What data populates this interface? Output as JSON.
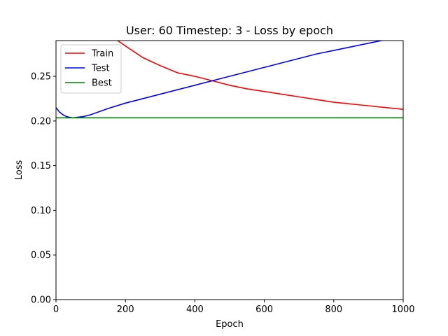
{
  "chart_data": {
    "type": "line",
    "title": "User: 60 Timestep: 3 - Loss by epoch",
    "xlabel": "Epoch",
    "ylabel": "Loss",
    "xlim": [
      0,
      1000
    ],
    "ylim": [
      0,
      0.29
    ],
    "xticks": [
      0,
      200,
      400,
      600,
      800,
      1000
    ],
    "xtick_labels": [
      "0",
      "200",
      "400",
      "600",
      "800",
      "1000"
    ],
    "yticks": [
      0,
      0.05,
      0.1,
      0.15,
      0.2,
      0.25
    ],
    "ytick_labels": [
      "0.00",
      "0.05",
      "0.10",
      "0.15",
      "0.20",
      "0.25"
    ],
    "grid": false,
    "legend_position": "top-left",
    "series": [
      {
        "name": "Train",
        "color": "#ff0000",
        "x": [
          170,
          200,
          250,
          300,
          350,
          400,
          450,
          500,
          550,
          600,
          650,
          700,
          750,
          800,
          850,
          900,
          950,
          1000
        ],
        "y": [
          0.292,
          0.284,
          0.271,
          0.262,
          0.254,
          0.25,
          0.245,
          0.24,
          0.236,
          0.233,
          0.23,
          0.227,
          0.224,
          0.221,
          0.219,
          0.217,
          0.215,
          0.213
        ]
      },
      {
        "name": "Test",
        "color": "#0000ff",
        "x": [
          0,
          10,
          20,
          30,
          40,
          50,
          60,
          80,
          100,
          150,
          200,
          250,
          300,
          350,
          400,
          450,
          500,
          550,
          600,
          650,
          700,
          750,
          800,
          850,
          900,
          950,
          1000
        ],
        "y": [
          0.215,
          0.21,
          0.207,
          0.205,
          0.204,
          0.2035,
          0.204,
          0.205,
          0.207,
          0.214,
          0.22,
          0.225,
          0.23,
          0.235,
          0.24,
          0.245,
          0.25,
          0.255,
          0.26,
          0.265,
          0.27,
          0.275,
          0.279,
          0.283,
          0.287,
          0.291,
          0.294
        ]
      },
      {
        "name": "Best",
        "color": "#008000",
        "x": [
          0,
          1000
        ],
        "y": [
          0.2035,
          0.2035
        ]
      }
    ]
  }
}
